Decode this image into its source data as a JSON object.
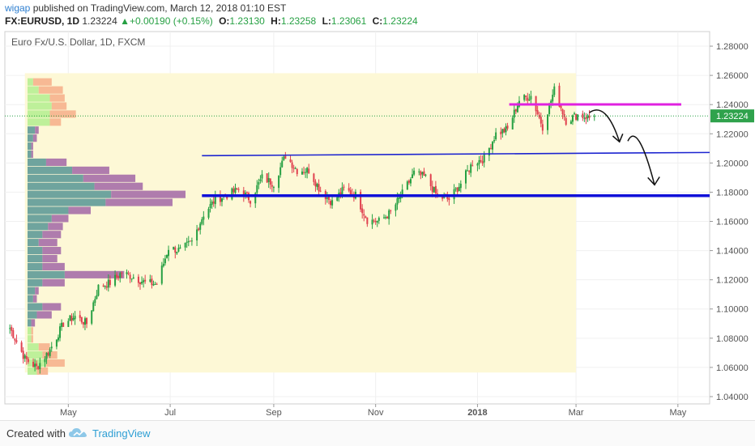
{
  "header": {
    "author": "wigap",
    "published_text": "published on TradingView.com, March 12, 2018 01:10 EST",
    "symbol": "FX:EURUSD, 1D",
    "last": "1.23224",
    "change": "+0.00190 (+0.15%)",
    "open_label": "O:",
    "open": "1.23130",
    "high_label": "H:",
    "high": "1.23258",
    "low_label": "L:",
    "low": "1.23061",
    "close_label": "C:",
    "close": "1.23224"
  },
  "chart_data": {
    "type": "candlestick",
    "title": "Euro Fx/U.S. Dollar, 1D, FXCM",
    "ylim": [
      1.035,
      1.29
    ],
    "y_ticks": [
      "1.28000",
      "1.26000",
      "1.24000",
      "1.22000",
      "1.20000",
      "1.18000",
      "1.16000",
      "1.14000",
      "1.12000",
      "1.10000",
      "1.08000",
      "1.06000",
      "1.04000"
    ],
    "x_ticks": [
      "May",
      "Jul",
      "Sep",
      "Nov",
      "2018",
      "Mar",
      "May"
    ],
    "x_tick_dates": [
      "2017-05-01",
      "2017-07-01",
      "2017-09-01",
      "2017-11-01",
      "2018-01-01",
      "2018-03-01",
      "2018-05-01"
    ],
    "x_range": [
      "2017-03-24",
      "2018-05-20"
    ],
    "last_price_label": "1.23224",
    "last_price": 1.23224,
    "price_path": [
      [
        "2017-03-27",
        1.087
      ],
      [
        "2017-04-05",
        1.066
      ],
      [
        "2017-04-12",
        1.06
      ],
      [
        "2017-04-20",
        1.072
      ],
      [
        "2017-04-28",
        1.09
      ],
      [
        "2017-05-05",
        1.095
      ],
      [
        "2017-05-12",
        1.09
      ],
      [
        "2017-05-19",
        1.115
      ],
      [
        "2017-05-26",
        1.118
      ],
      [
        "2017-06-02",
        1.125
      ],
      [
        "2017-06-09",
        1.122
      ],
      [
        "2017-06-16",
        1.118
      ],
      [
        "2017-06-23",
        1.117
      ],
      [
        "2017-06-30",
        1.142
      ],
      [
        "2017-07-07",
        1.14
      ],
      [
        "2017-07-14",
        1.146
      ],
      [
        "2017-07-21",
        1.165
      ],
      [
        "2017-07-28",
        1.175
      ],
      [
        "2017-08-04",
        1.178
      ],
      [
        "2017-08-11",
        1.182
      ],
      [
        "2017-08-18",
        1.175
      ],
      [
        "2017-08-25",
        1.19
      ],
      [
        "2017-09-01",
        1.186
      ],
      [
        "2017-09-08",
        1.205
      ],
      [
        "2017-09-15",
        1.195
      ],
      [
        "2017-09-22",
        1.195
      ],
      [
        "2017-09-29",
        1.181
      ],
      [
        "2017-10-06",
        1.173
      ],
      [
        "2017-10-13",
        1.182
      ],
      [
        "2017-10-20",
        1.178
      ],
      [
        "2017-10-27",
        1.161
      ],
      [
        "2017-11-03",
        1.16
      ],
      [
        "2017-11-10",
        1.166
      ],
      [
        "2017-11-17",
        1.179
      ],
      [
        "2017-11-24",
        1.193
      ],
      [
        "2017-12-01",
        1.19
      ],
      [
        "2017-12-08",
        1.177
      ],
      [
        "2017-12-15",
        1.175
      ],
      [
        "2017-12-22",
        1.186
      ],
      [
        "2017-12-29",
        1.2
      ],
      [
        "2018-01-05",
        1.203
      ],
      [
        "2018-01-12",
        1.22
      ],
      [
        "2018-01-19",
        1.223
      ],
      [
        "2018-01-26",
        1.243
      ],
      [
        "2018-02-02",
        1.246
      ],
      [
        "2018-02-09",
        1.225
      ],
      [
        "2018-02-16",
        1.25
      ],
      [
        "2018-02-23",
        1.229
      ],
      [
        "2018-03-02",
        1.233
      ],
      [
        "2018-03-09",
        1.231
      ],
      [
        "2018-03-12",
        1.232
      ]
    ],
    "volume_profile": [
      {
        "price": 1.2555,
        "up": 3,
        "down": 10
      },
      {
        "price": 1.25,
        "up": 6,
        "down": 13
      },
      {
        "price": 1.2445,
        "up": 12,
        "down": 8
      },
      {
        "price": 1.239,
        "up": 13,
        "down": 8
      },
      {
        "price": 1.2335,
        "up": 12,
        "down": 14
      },
      {
        "price": 1.228,
        "up": 12,
        "down": 6
      },
      {
        "price": 1.2225,
        "up": 4,
        "down": 2
      },
      {
        "price": 1.217,
        "up": 3,
        "down": 2
      },
      {
        "price": 1.2115,
        "up": 2,
        "down": 1
      },
      {
        "price": 1.206,
        "up": 2,
        "down": 1
      },
      {
        "price": 1.2005,
        "up": 10,
        "down": 11
      },
      {
        "price": 1.195,
        "up": 24,
        "down": 20
      },
      {
        "price": 1.1895,
        "up": 30,
        "down": 28
      },
      {
        "price": 1.184,
        "up": 36,
        "down": 26
      },
      {
        "price": 1.1785,
        "up": 45,
        "down": 40
      },
      {
        "price": 1.173,
        "up": 42,
        "down": 36
      },
      {
        "price": 1.1675,
        "up": 22,
        "down": 12
      },
      {
        "price": 1.162,
        "up": 13,
        "down": 9
      },
      {
        "price": 1.1565,
        "up": 11,
        "down": 8
      },
      {
        "price": 1.151,
        "up": 8,
        "down": 10
      },
      {
        "price": 1.1455,
        "up": 6,
        "down": 10
      },
      {
        "price": 1.14,
        "up": 8,
        "down": 10
      },
      {
        "price": 1.1345,
        "up": 8,
        "down": 8
      },
      {
        "price": 1.129,
        "up": 8,
        "down": 12
      },
      {
        "price": 1.1235,
        "up": 20,
        "down": 32
      },
      {
        "price": 1.118,
        "up": 8,
        "down": 12
      },
      {
        "price": 1.1125,
        "up": 4,
        "down": 2
      },
      {
        "price": 1.107,
        "up": 3,
        "down": 2
      },
      {
        "price": 1.1015,
        "up": 8,
        "down": 10
      },
      {
        "price": 1.096,
        "up": 5,
        "down": 8
      },
      {
        "price": 1.0905,
        "up": 2,
        "down": 2
      },
      {
        "price": 1.085,
        "up": 2,
        "down": 1
      },
      {
        "price": 1.0795,
        "up": 2,
        "down": 1
      },
      {
        "price": 1.074,
        "up": 6,
        "down": 6
      },
      {
        "price": 1.0685,
        "up": 8,
        "down": 8
      },
      {
        "price": 1.063,
        "up": 10,
        "down": 10
      },
      {
        "price": 1.0575,
        "up": 5,
        "down": 6
      }
    ],
    "value_area": {
      "start": "2017-04-05",
      "end": "2018-03-01",
      "top": 1.2615,
      "bottom": 1.0565
    },
    "drawings": {
      "magenta_line": {
        "x1": "2018-01-20",
        "x2": "2018-05-03",
        "price": 1.2401,
        "color": "#e020e0"
      },
      "blue_trend_line": {
        "x1": "2017-07-20",
        "y1": 1.205,
        "x2": "2018-05-20",
        "y2": 1.2072,
        "color": "#1c24d0"
      },
      "blue_horizontal_line": {
        "x1": "2017-07-20",
        "x2": "2018-05-20",
        "price": 1.1776,
        "color": "#1010d8"
      },
      "arrows_color": "#111111"
    },
    "colors": {
      "up": "#26a043",
      "down": "#e0404e",
      "va_fill": "#fdf8d6",
      "vp_up_va": "#5f9a98",
      "vp_down_va": "#a66ea8",
      "vp_up_out": "#b7ee94",
      "vp_down_out": "#f6b18d"
    }
  },
  "footer": {
    "created_with": "Created with",
    "brand": "TradingView"
  }
}
